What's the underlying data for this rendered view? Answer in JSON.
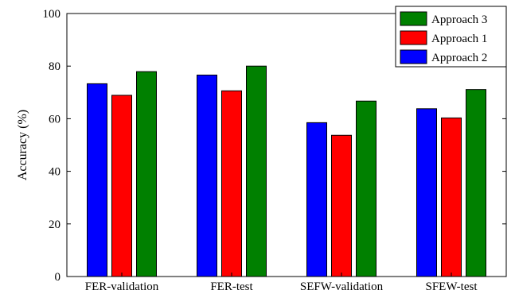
{
  "chart_data": {
    "type": "bar",
    "categories": [
      "FER-validation",
      "FER-test",
      "SEFW-validation",
      "SFEW-test"
    ],
    "series": [
      {
        "name": "Approach 2",
        "color": "#0000ff",
        "values": [
          73.3,
          76.6,
          58.5,
          63.8
        ]
      },
      {
        "name": "Approach 1",
        "color": "#ff0000",
        "values": [
          68.9,
          70.6,
          53.7,
          60.3
        ]
      },
      {
        "name": "Approach 3",
        "color": "#008000",
        "values": [
          77.9,
          80.0,
          66.7,
          71.1
        ]
      }
    ],
    "legend_order": [
      "Approach 3",
      "Approach 1",
      "Approach 2"
    ],
    "legend_position": "top-right",
    "xlabel": "",
    "ylabel": "Accuracy (%)",
    "ylim": [
      0,
      100
    ],
    "yticks": [
      0,
      20,
      40,
      60,
      80,
      100
    ],
    "grid": false
  }
}
